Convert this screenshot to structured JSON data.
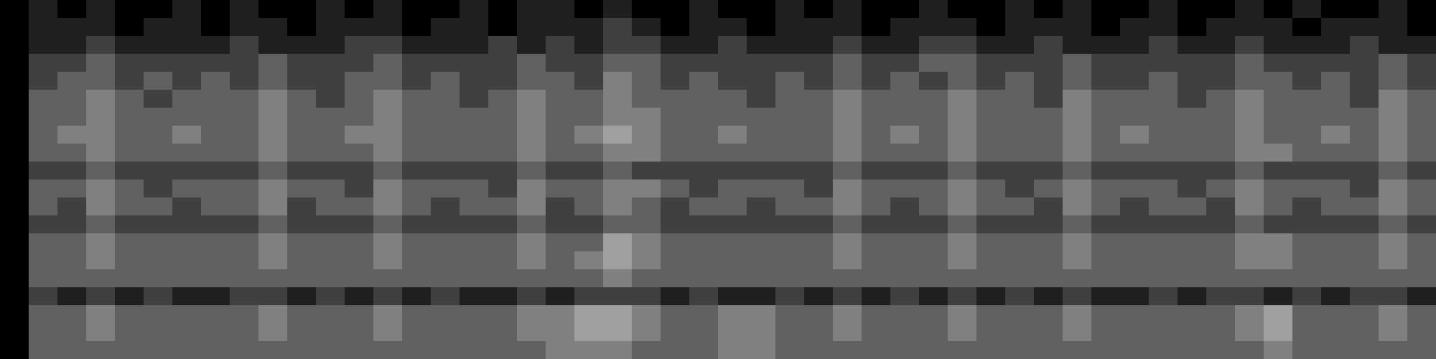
{
  "chart_data": {
    "type": "heatmap",
    "tick_labels": false,
    "zlim": [
      0,
      8
    ],
    "cells": [
      [
        0,
        1,
        0,
        1,
        0,
        0,
        1,
        0,
        1,
        0,
        0,
        1,
        0,
        1,
        0,
        0,
        1,
        0,
        1,
        1,
        0,
        1,
        0,
        0,
        1,
        0,
        0,
        1,
        0,
        1,
        0,
        0,
        1,
        0,
        0,
        1,
        0,
        1,
        0,
        0,
        1,
        0,
        0,
        1,
        0,
        1,
        0,
        0,
        1,
        0
      ],
      [
        0,
        1,
        1,
        1,
        0,
        1,
        1,
        0,
        1,
        1,
        0,
        1,
        1,
        1,
        0,
        1,
        1,
        0,
        1,
        1,
        1,
        2,
        1,
        0,
        1,
        1,
        0,
        1,
        1,
        1,
        0,
        1,
        1,
        1,
        0,
        1,
        1,
        1,
        0,
        1,
        1,
        0,
        1,
        1,
        1,
        0,
        1,
        1,
        1,
        0
      ],
      [
        0,
        1,
        1,
        2,
        1,
        1,
        1,
        1,
        2,
        1,
        1,
        1,
        2,
        2,
        1,
        1,
        1,
        2,
        1,
        2,
        1,
        2,
        2,
        1,
        1,
        2,
        1,
        1,
        1,
        2,
        1,
        1,
        2,
        2,
        1,
        1,
        2,
        1,
        1,
        1,
        2,
        1,
        1,
        2,
        1,
        1,
        1,
        2,
        1,
        1
      ],
      [
        0,
        2,
        2,
        3,
        2,
        2,
        2,
        2,
        2,
        3,
        2,
        2,
        2,
        3,
        2,
        2,
        2,
        2,
        3,
        2,
        2,
        3,
        3,
        2,
        2,
        2,
        2,
        2,
        2,
        3,
        2,
        2,
        3,
        3,
        2,
        2,
        2,
        3,
        2,
        2,
        2,
        2,
        2,
        3,
        2,
        2,
        2,
        2,
        3,
        2
      ],
      [
        0,
        2,
        3,
        3,
        2,
        3,
        2,
        3,
        2,
        3,
        2,
        2,
        3,
        3,
        2,
        3,
        2,
        2,
        3,
        3,
        2,
        4,
        3,
        2,
        3,
        2,
        2,
        3,
        2,
        3,
        2,
        3,
        2,
        3,
        2,
        3,
        2,
        3,
        2,
        2,
        3,
        2,
        2,
        3,
        3,
        2,
        3,
        2,
        3,
        2
      ],
      [
        0,
        3,
        3,
        4,
        3,
        2,
        3,
        3,
        3,
        4,
        3,
        2,
        3,
        4,
        3,
        3,
        2,
        3,
        4,
        3,
        3,
        4,
        3,
        3,
        3,
        3,
        2,
        3,
        3,
        4,
        3,
        3,
        3,
        4,
        3,
        3,
        2,
        4,
        3,
        3,
        3,
        2,
        3,
        4,
        3,
        3,
        3,
        2,
        4,
        3
      ],
      [
        0,
        3,
        3,
        4,
        3,
        3,
        3,
        3,
        3,
        4,
        3,
        3,
        3,
        4,
        3,
        3,
        3,
        3,
        4,
        3,
        3,
        4,
        4,
        3,
        3,
        3,
        3,
        3,
        3,
        4,
        3,
        3,
        3,
        4,
        3,
        3,
        3,
        4,
        3,
        3,
        3,
        3,
        3,
        4,
        3,
        3,
        3,
        3,
        4,
        3
      ],
      [
        0,
        3,
        4,
        4,
        3,
        3,
        4,
        3,
        3,
        4,
        3,
        3,
        4,
        4,
        3,
        3,
        3,
        3,
        4,
        3,
        4,
        5,
        4,
        3,
        3,
        4,
        3,
        3,
        3,
        4,
        3,
        4,
        3,
        4,
        3,
        3,
        3,
        4,
        3,
        4,
        3,
        3,
        3,
        4,
        3,
        3,
        4,
        3,
        4,
        3
      ],
      [
        0,
        3,
        3,
        4,
        3,
        3,
        3,
        3,
        3,
        4,
        3,
        3,
        3,
        4,
        3,
        3,
        3,
        3,
        4,
        3,
        3,
        4,
        4,
        3,
        3,
        3,
        3,
        3,
        3,
        4,
        3,
        3,
        3,
        4,
        3,
        3,
        3,
        4,
        3,
        3,
        3,
        3,
        3,
        4,
        4,
        3,
        3,
        3,
        4,
        3
      ],
      [
        0,
        2,
        2,
        3,
        2,
        2,
        2,
        2,
        2,
        3,
        2,
        2,
        2,
        3,
        2,
        2,
        2,
        2,
        3,
        2,
        2,
        3,
        2,
        2,
        2,
        2,
        2,
        2,
        2,
        3,
        2,
        2,
        2,
        3,
        2,
        2,
        2,
        3,
        2,
        2,
        2,
        2,
        2,
        3,
        2,
        2,
        2,
        2,
        3,
        2
      ],
      [
        0,
        3,
        3,
        4,
        3,
        2,
        3,
        3,
        3,
        4,
        3,
        3,
        2,
        4,
        3,
        3,
        3,
        2,
        4,
        3,
        3,
        4,
        4,
        3,
        2,
        3,
        3,
        3,
        2,
        4,
        3,
        3,
        3,
        4,
        3,
        2,
        3,
        4,
        3,
        3,
        3,
        2,
        3,
        4,
        3,
        3,
        3,
        2,
        4,
        3
      ],
      [
        0,
        3,
        2,
        4,
        3,
        3,
        2,
        3,
        3,
        4,
        2,
        3,
        3,
        4,
        3,
        2,
        3,
        3,
        4,
        2,
        3,
        4,
        3,
        2,
        3,
        3,
        2,
        3,
        3,
        4,
        3,
        2,
        3,
        4,
        3,
        3,
        2,
        4,
        3,
        2,
        3,
        3,
        2,
        4,
        3,
        2,
        3,
        3,
        4,
        3
      ],
      [
        0,
        2,
        2,
        3,
        2,
        2,
        2,
        2,
        2,
        3,
        2,
        2,
        2,
        3,
        2,
        2,
        2,
        2,
        3,
        2,
        2,
        3,
        3,
        2,
        2,
        2,
        2,
        2,
        2,
        3,
        2,
        2,
        2,
        3,
        2,
        2,
        2,
        3,
        2,
        2,
        2,
        2,
        2,
        3,
        2,
        2,
        2,
        2,
        3,
        2
      ],
      [
        0,
        3,
        3,
        4,
        3,
        3,
        3,
        3,
        3,
        4,
        3,
        3,
        3,
        4,
        3,
        3,
        3,
        3,
        4,
        3,
        3,
        5,
        4,
        3,
        3,
        3,
        3,
        3,
        3,
        4,
        3,
        3,
        3,
        4,
        3,
        3,
        3,
        4,
        3,
        3,
        3,
        3,
        3,
        4,
        4,
        3,
        3,
        3,
        4,
        3
      ],
      [
        0,
        3,
        3,
        4,
        3,
        3,
        3,
        3,
        3,
        4,
        3,
        3,
        3,
        4,
        3,
        3,
        3,
        3,
        4,
        3,
        4,
        5,
        4,
        3,
        3,
        3,
        3,
        3,
        3,
        4,
        3,
        3,
        3,
        4,
        3,
        3,
        3,
        4,
        3,
        3,
        3,
        3,
        3,
        4,
        4,
        3,
        3,
        3,
        4,
        3
      ],
      [
        0,
        3,
        3,
        3,
        3,
        3,
        3,
        3,
        3,
        3,
        3,
        3,
        3,
        3,
        3,
        3,
        3,
        3,
        3,
        3,
        3,
        4,
        3,
        3,
        3,
        3,
        3,
        3,
        3,
        3,
        3,
        3,
        3,
        3,
        3,
        3,
        3,
        3,
        3,
        3,
        3,
        3,
        3,
        3,
        3,
        3,
        3,
        3,
        3,
        3
      ],
      [
        0,
        2,
        1,
        2,
        1,
        2,
        1,
        1,
        2,
        2,
        1,
        2,
        1,
        2,
        1,
        2,
        1,
        1,
        2,
        1,
        2,
        2,
        2,
        1,
        2,
        1,
        1,
        2,
        1,
        2,
        1,
        2,
        1,
        2,
        1,
        2,
        1,
        2,
        1,
        1,
        2,
        1,
        2,
        2,
        1,
        2,
        1,
        2,
        2,
        1
      ],
      [
        0,
        3,
        3,
        4,
        3,
        3,
        3,
        3,
        3,
        4,
        3,
        3,
        3,
        4,
        3,
        3,
        3,
        3,
        4,
        4,
        5,
        5,
        4,
        3,
        3,
        4,
        4,
        3,
        3,
        4,
        3,
        3,
        3,
        4,
        3,
        3,
        3,
        4,
        3,
        3,
        3,
        3,
        3,
        4,
        5,
        3,
        3,
        3,
        4,
        3
      ],
      [
        0,
        3,
        3,
        4,
        3,
        3,
        3,
        3,
        3,
        4,
        3,
        3,
        3,
        4,
        3,
        3,
        3,
        3,
        4,
        4,
        5,
        5,
        4,
        3,
        3,
        4,
        4,
        3,
        3,
        4,
        3,
        3,
        3,
        4,
        3,
        3,
        3,
        4,
        3,
        3,
        3,
        3,
        3,
        4,
        5,
        3,
        3,
        3,
        4,
        3
      ],
      [
        0,
        3,
        3,
        3,
        3,
        3,
        3,
        3,
        3,
        3,
        3,
        3,
        3,
        3,
        3,
        3,
        3,
        3,
        3,
        4,
        4,
        4,
        3,
        3,
        3,
        4,
        4,
        3,
        3,
        3,
        3,
        3,
        3,
        3,
        3,
        3,
        3,
        3,
        3,
        3,
        3,
        3,
        3,
        3,
        4,
        3,
        3,
        3,
        3,
        3
      ]
    ]
  }
}
